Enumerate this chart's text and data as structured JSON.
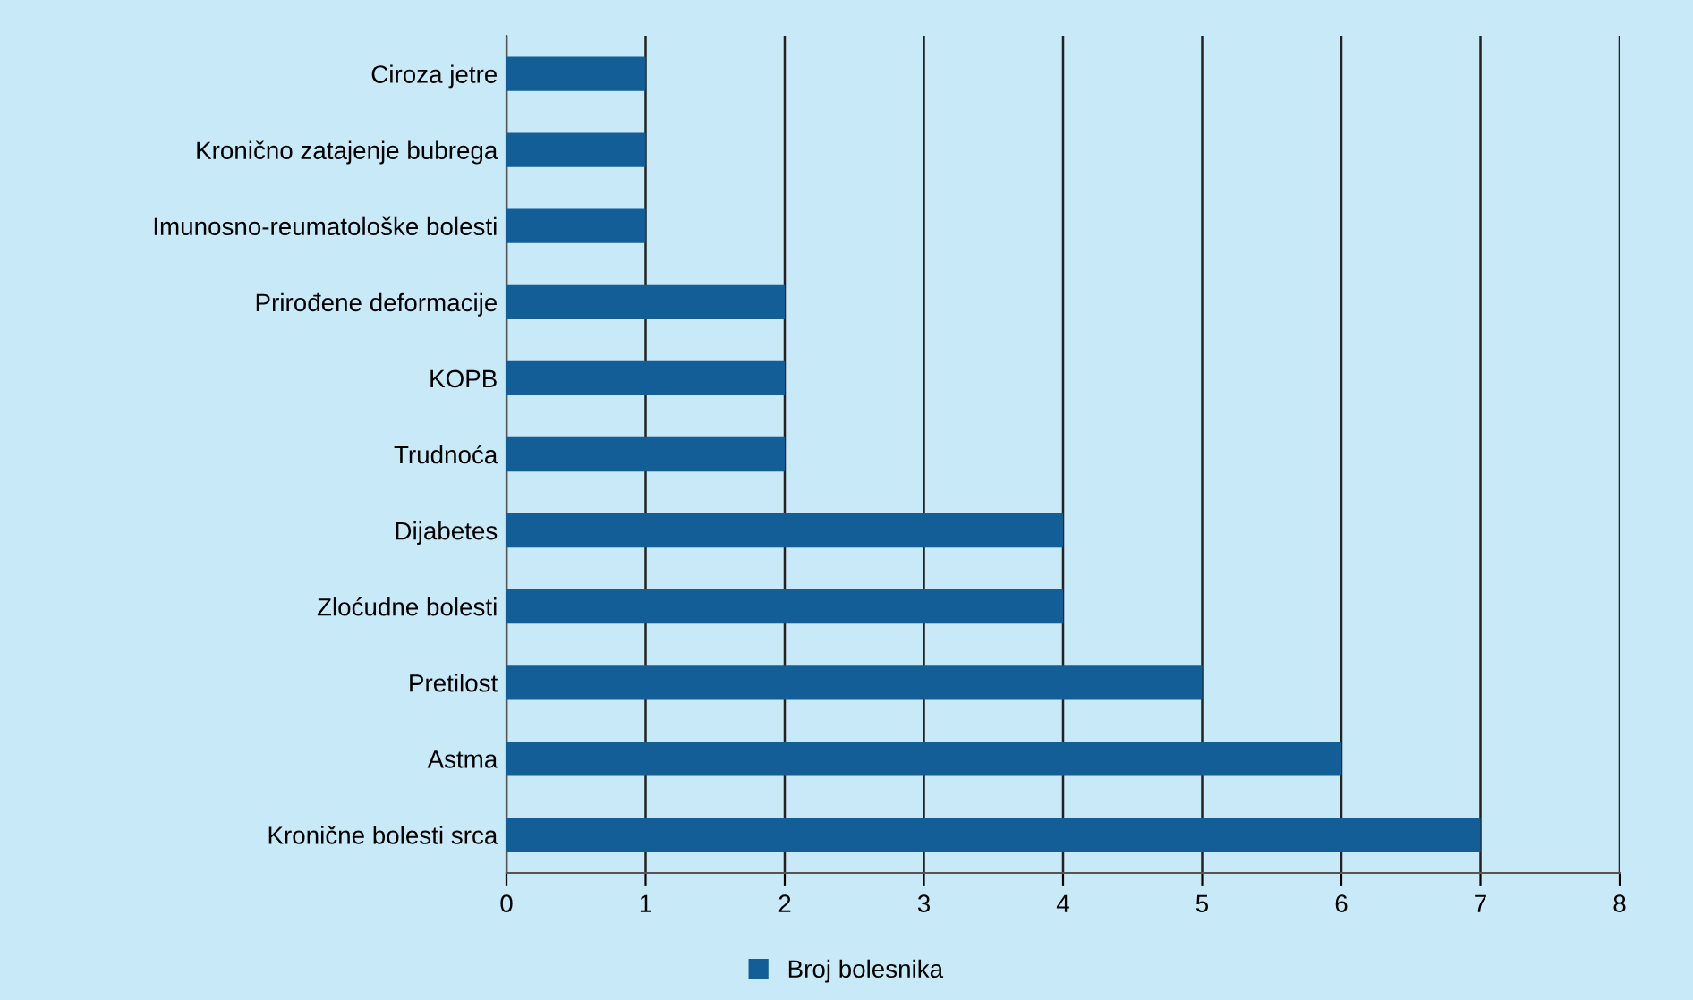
{
  "chart_data": {
    "type": "bar",
    "orientation": "horizontal",
    "categories": [
      "Ciroza jetre",
      "Kronično zatajenje bubrega",
      "Imunosno-reumatološke bolesti",
      "Prirođene deformacije",
      "KOPB",
      "Trudnoća",
      "Dijabetes",
      "Zloćudne bolesti",
      "Pretilost",
      "Astma",
      "Kronične bolesti srca"
    ],
    "series": [
      {
        "name": "Broj bolesnika",
        "color": "#135e96",
        "values": [
          1,
          1,
          1,
          2,
          2,
          2,
          4,
          4,
          5,
          6,
          7
        ]
      }
    ],
    "xlim": [
      0,
      8
    ],
    "xticks": [
      0,
      1,
      2,
      3,
      4,
      5,
      6,
      7,
      8
    ],
    "grid": "x",
    "legend": "bottom"
  }
}
